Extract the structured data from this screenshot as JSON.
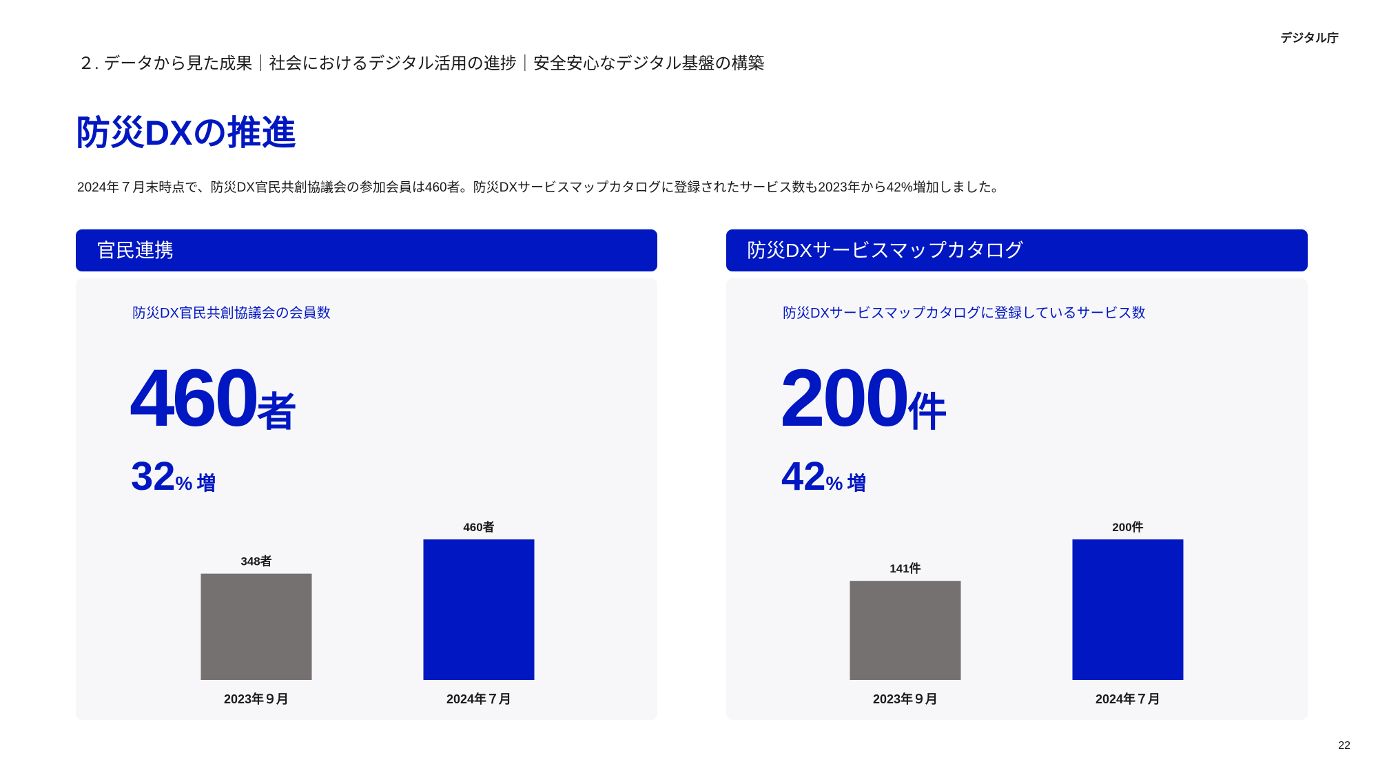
{
  "header": {
    "logo": "デジタル庁",
    "breadcrumb": "２. データから見た成果｜社会におけるデジタル活用の進捗｜安全安心なデジタル基盤の構築",
    "title": "防災DXの推進",
    "lead": "2024年７月末時点で、防災DX官民共創協議会の参加会員は460者。防災DXサービスマップカタログに登録されたサービス数も2023年から42%増加しました。"
  },
  "panels": [
    {
      "heading": "官民連携",
      "caption": "防災DX官民共創協議会の会員数",
      "stat": "460",
      "stat_unit": "者",
      "growth": "32",
      "growth_unit": "%",
      "growth_word": "増"
    },
    {
      "heading": "防災DXサービスマップカタログ",
      "caption": "防災DXサービスマップカタログに登録しているサービス数",
      "stat": "200",
      "stat_unit": "件",
      "growth": "42",
      "growth_unit": "%",
      "growth_word": "増"
    }
  ],
  "chart_data": [
    {
      "type": "bar",
      "categories": [
        "2023年９月",
        "2024年７月"
      ],
      "values": [
        348,
        460
      ],
      "value_labels": [
        "348者",
        "460者"
      ],
      "colors": [
        "#767171",
        "#0017c1"
      ]
    },
    {
      "type": "bar",
      "categories": [
        "2023年９月",
        "2024年７月"
      ],
      "values": [
        141,
        200
      ],
      "value_labels": [
        "141件",
        "200件"
      ],
      "colors": [
        "#767171",
        "#0017c1"
      ]
    }
  ],
  "page_number": "22"
}
